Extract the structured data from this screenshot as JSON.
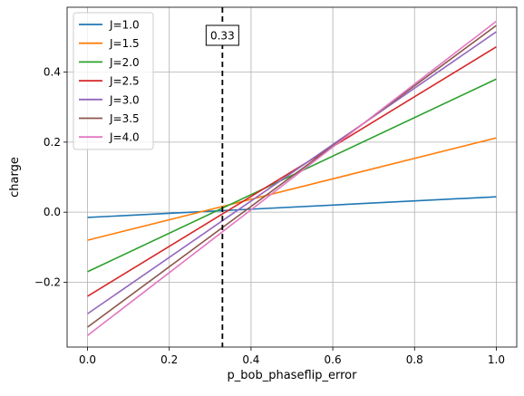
{
  "chart_data": {
    "type": "line",
    "title": "",
    "xlabel": "p_bob_phaseflip_error",
    "ylabel": "charge",
    "xlim": [
      -0.05,
      1.05
    ],
    "ylim": [
      -0.385,
      0.585
    ],
    "xticks": [
      0.0,
      0.2,
      0.4,
      0.6,
      0.8,
      1.0
    ],
    "xtick_labels": [
      "0.0",
      "0.2",
      "0.4",
      "0.6",
      "0.8",
      "1.0"
    ],
    "yticks": [
      -0.2,
      0.0,
      0.2,
      0.4
    ],
    "ytick_labels": [
      "−0.2",
      "0.0",
      "0.2",
      "0.4"
    ],
    "grid": true,
    "legend_position": "upper-left",
    "vline": {
      "x": 0.33,
      "label": "0.33",
      "style": "dashed",
      "color": "#000000"
    },
    "series": [
      {
        "name": "J=1.0",
        "color": "#1f77b4",
        "x": [
          0.0,
          1.0
        ],
        "y": [
          -0.015,
          0.044
        ]
      },
      {
        "name": "J=1.5",
        "color": "#ff7f0e",
        "x": [
          0.0,
          1.0
        ],
        "y": [
          -0.08,
          0.212
        ]
      },
      {
        "name": "J=2.0",
        "color": "#2ca02c",
        "x": [
          0.0,
          1.0
        ],
        "y": [
          -0.17,
          0.38
        ]
      },
      {
        "name": "J=2.5",
        "color": "#d62728",
        "x": [
          0.0,
          1.0
        ],
        "y": [
          -0.24,
          0.472
        ]
      },
      {
        "name": "J=3.0",
        "color": "#9467bd",
        "x": [
          0.0,
          1.0
        ],
        "y": [
          -0.29,
          0.515
        ]
      },
      {
        "name": "J=3.5",
        "color": "#8c564b",
        "x": [
          0.0,
          1.0
        ],
        "y": [
          -0.328,
          0.533
        ]
      },
      {
        "name": "J=4.0",
        "color": "#e377c2",
        "x": [
          0.0,
          1.0
        ],
        "y": [
          -0.352,
          0.545
        ]
      }
    ]
  }
}
